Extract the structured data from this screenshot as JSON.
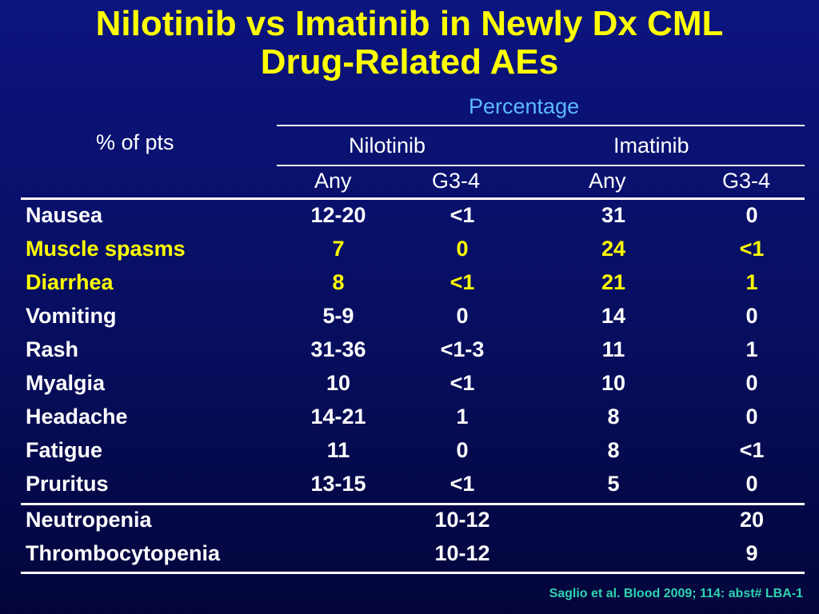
{
  "title": {
    "line1": "Nilotinib vs Imatinib in Newly Dx CML",
    "line2": "Drug-Related AEs"
  },
  "table": {
    "row_header_label": "% of pts",
    "group_header": "Percentage",
    "drug_headers": [
      "Nilotinib",
      "Imatinib"
    ],
    "sub_headers": [
      "Any",
      "G3-4",
      "Any",
      "G3-4"
    ],
    "rows": [
      {
        "label": "Nausea",
        "nil_any": "12-20",
        "nil_g34": "<1",
        "ima_any": "31",
        "ima_g34": "0"
      },
      {
        "label": "Muscle spasms",
        "nil_any": "7",
        "nil_g34": "0",
        "ima_any": "24",
        "ima_g34": "<1"
      },
      {
        "label": "Diarrhea",
        "nil_any": "8",
        "nil_g34": "<1",
        "ima_any": "21",
        "ima_g34": "1"
      },
      {
        "label": "Vomiting",
        "nil_any": "5-9",
        "nil_g34": "0",
        "ima_any": "14",
        "ima_g34": "0"
      },
      {
        "label": "Rash",
        "nil_any": "31-36",
        "nil_g34": "<1-3",
        "ima_any": "11",
        "ima_g34": "1"
      },
      {
        "label": "Myalgia",
        "nil_any": "10",
        "nil_g34": "<1",
        "ima_any": "10",
        "ima_g34": "0"
      },
      {
        "label": "Headache",
        "nil_any": "14-21",
        "nil_g34": "1",
        "ima_any": "8",
        "ima_g34": "0"
      },
      {
        "label": "Fatigue",
        "nil_any": "11",
        "nil_g34": "0",
        "ima_any": "8",
        "ima_g34": "<1"
      },
      {
        "label": "Pruritus",
        "nil_any": "13-15",
        "nil_g34": "<1",
        "ima_any": "5",
        "ima_g34": "0"
      }
    ],
    "heme_rows": [
      {
        "label": "Neutropenia",
        "nil_g34": "10-12",
        "ima_g34": "20"
      },
      {
        "label": "Thrombocytopenia",
        "nil_g34": "10-12",
        "ima_g34": "9"
      }
    ]
  },
  "citation": "Saglio et al. Blood 2009; 114: abst# LBA-1",
  "colors": {
    "background": "#0a1170",
    "title": "#ffff00",
    "highlight_rows": "#ffff00",
    "header_accent": "#5cb8ff",
    "citation": "#2fd3b0"
  }
}
